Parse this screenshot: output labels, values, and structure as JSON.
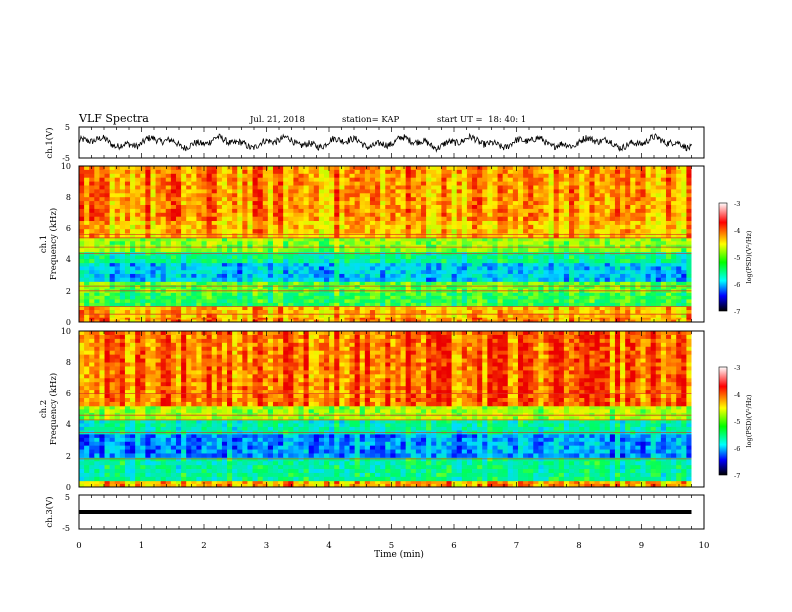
{
  "header": {
    "title": "VLF Spectra",
    "date": "Jul. 21, 2018",
    "station": "station= KAP",
    "start": "start UT =  18: 40: 1"
  },
  "panels": {
    "ch1v": {
      "ylabel": "ch.1(V)",
      "yticks": [
        "5",
        "-5"
      ]
    },
    "spec1": {
      "ylabel_top": "ch.1",
      "ylabel_bottom": "Frequency (kHz)",
      "yticks": [
        "10",
        "8",
        "6",
        "4",
        "2",
        "0"
      ]
    },
    "spec2": {
      "ylabel_top": "ch.2",
      "ylabel_bottom": "Frequency (kHz)",
      "yticks": [
        "10",
        "8",
        "6",
        "4",
        "2",
        "0"
      ]
    },
    "ch3v": {
      "ylabel": "ch.3(V)",
      "yticks": [
        "5",
        "-5"
      ]
    }
  },
  "colorbar": {
    "label": "log(PSD)(V²/Hz)",
    "ticks": [
      "-3",
      "-4",
      "-5",
      "-6",
      "-7"
    ],
    "colors": [
      "#ffffff",
      "#ff0000",
      "#ffff00",
      "#00ff00",
      "#00ffff",
      "#0000ff",
      "#000000"
    ]
  },
  "chart_data": [
    {
      "type": "line",
      "name": "ch1 waveform",
      "ylabel": "ch.1(V)",
      "ylim": [
        -5,
        5
      ],
      "xlim": [
        0,
        10
      ],
      "x_extent": [
        0,
        9.8
      ],
      "amplitude_approx": 2
    },
    {
      "type": "heatmap",
      "ylabel": "ch.1 Frequency (kHz)",
      "xlim": [
        0,
        10
      ],
      "x_extent": [
        0,
        9.8
      ],
      "ylim": [
        0,
        10
      ],
      "zlabel": "log(PSD)(V²/Hz)",
      "zlim": [
        -7,
        -3
      ],
      "bands": [
        {
          "f_min": 0.0,
          "f_max": 0.3,
          "level": -3.8
        },
        {
          "f_min": 0.3,
          "f_max": 1.0,
          "level": -4.0
        },
        {
          "f_min": 1.0,
          "f_max": 1.9,
          "level": -5.1
        },
        {
          "f_min": 1.9,
          "f_max": 2.6,
          "level": -4.9
        },
        {
          "f_min": 2.6,
          "f_max": 3.8,
          "level": -5.9
        },
        {
          "f_min": 3.8,
          "f_max": 4.5,
          "level": -5.4
        },
        {
          "f_min": 4.5,
          "f_max": 5.4,
          "level": -4.7
        },
        {
          "f_min": 5.4,
          "f_max": 6.5,
          "level": -4.0
        },
        {
          "f_min": 6.5,
          "f_max": 10.0,
          "level": -3.8
        }
      ],
      "lines_khz": [
        0.5,
        1.0,
        2.0,
        2.3,
        4.4,
        4.8,
        5.4,
        5.6
      ]
    },
    {
      "type": "heatmap",
      "ylabel": "ch.2 Frequency (kHz)",
      "xlim": [
        0,
        10
      ],
      "x_extent": [
        0,
        9.8
      ],
      "ylim": [
        0,
        10
      ],
      "zlabel": "log(PSD)(V²/Hz)",
      "zlim": [
        -7,
        -3
      ],
      "bands": [
        {
          "f_min": 0.0,
          "f_max": 0.4,
          "level": -3.9
        },
        {
          "f_min": 0.4,
          "f_max": 1.9,
          "level": -5.4
        },
        {
          "f_min": 1.9,
          "f_max": 3.4,
          "level": -6.1
        },
        {
          "f_min": 3.4,
          "f_max": 4.3,
          "level": -5.5
        },
        {
          "f_min": 4.3,
          "f_max": 5.2,
          "level": -4.6
        },
        {
          "f_min": 5.2,
          "f_max": 10.0,
          "level": -3.6
        }
      ],
      "lines_khz": [
        1.8,
        3.5,
        4.3,
        4.6,
        6.0
      ]
    },
    {
      "type": "line",
      "name": "ch3 waveform",
      "ylabel": "ch.3(V)",
      "ylim": [
        -5,
        5
      ],
      "xlim": [
        0,
        10
      ],
      "x_extent": [
        0,
        9.8
      ],
      "constant_value": 0
    }
  ],
  "xaxis": {
    "label": "Time (min)",
    "ticks": [
      "0",
      "1",
      "2",
      "3",
      "4",
      "5",
      "6",
      "7",
      "8",
      "9",
      "10"
    ]
  }
}
